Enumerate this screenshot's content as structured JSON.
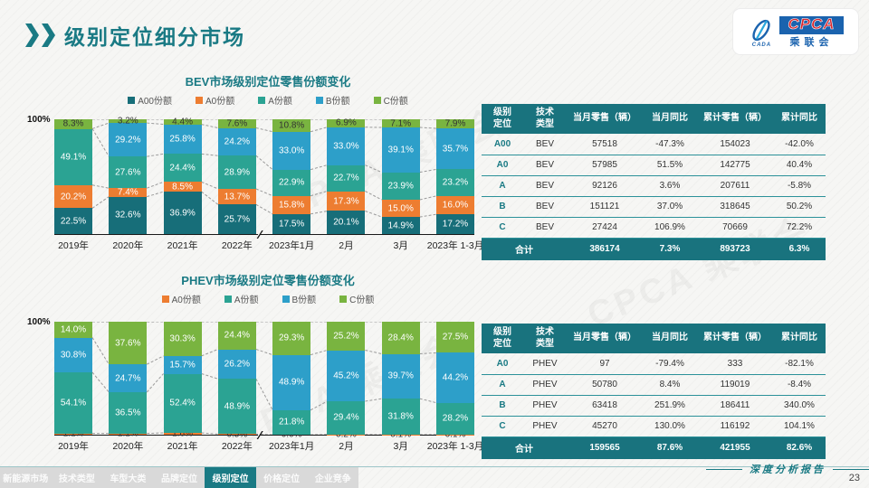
{
  "header": {
    "title": "级别定位细分市场",
    "logo": {
      "brand": "CPCA",
      "subtitle": "乘联会",
      "icon_label": "CADA"
    }
  },
  "watermark": {
    "text": "CPCA 乘联会"
  },
  "chart_data": [
    {
      "type": "stacked-bar",
      "title": "BEV市场级别定位零售份额变化",
      "unit": "%",
      "ymax_label": "100%",
      "ylim": [
        0,
        100
      ],
      "legend_position": "top",
      "break_after_index": 3,
      "break_mark": "∕∕",
      "categories": [
        "2019年",
        "2020年",
        "2021年",
        "2022年",
        "2023年1月",
        "2月",
        "3月",
        "2023年 1-3月"
      ],
      "series": [
        {
          "name": "A00份额",
          "color": "#176e79",
          "label_color": "#ffffff",
          "skip_zero_label": true,
          "values": [
            22.5,
            32.6,
            36.9,
            25.7,
            17.5,
            20.1,
            14.9,
            17.2
          ]
        },
        {
          "name": "A0份额",
          "color": "#ed7d31",
          "label_color": "#ffffff",
          "skip_zero_label": true,
          "values": [
            20.2,
            7.4,
            8.5,
            13.7,
            15.8,
            17.3,
            15.0,
            16.0
          ]
        },
        {
          "name": "A份额",
          "color": "#2ba393",
          "label_color": "#ffffff",
          "skip_zero_label": true,
          "values": [
            49.1,
            27.6,
            24.4,
            28.9,
            22.9,
            22.7,
            23.9,
            23.2
          ]
        },
        {
          "name": "B份额",
          "color": "#2d9fc9",
          "label_color": "#ffffff",
          "skip_zero_label": true,
          "values": [
            0,
            29.2,
            25.8,
            24.2,
            33.0,
            33.0,
            39.1,
            35.7
          ]
        },
        {
          "name": "C份额",
          "color": "#79b440",
          "label_color": "#333333",
          "skip_zero_label": true,
          "values": [
            8.3,
            3.2,
            4.4,
            7.6,
            10.8,
            6.9,
            7.1,
            7.9
          ]
        }
      ]
    },
    {
      "type": "stacked-bar",
      "title": "PHEV市场级别定位零售份额变化",
      "unit": "%",
      "ymax_label": "100%",
      "ylim": [
        0,
        100
      ],
      "legend_position": "top",
      "break_after_index": 3,
      "break_mark": "∕∕",
      "categories": [
        "2019年",
        "2020年",
        "2021年",
        "2022年",
        "2023年1月",
        "2月",
        "3月",
        "2023年 1-3月"
      ],
      "series": [
        {
          "name": "A0份额",
          "color": "#ed7d31",
          "label_color": "#333333",
          "skip_zero_label": false,
          "values": [
            1.1,
            1.1,
            1.6,
            0.5,
            0.0,
            0.2,
            0.1,
            0.1
          ]
        },
        {
          "name": "A份额",
          "color": "#2ba393",
          "label_color": "#ffffff",
          "skip_zero_label": true,
          "values": [
            54.1,
            36.5,
            52.4,
            48.9,
            21.8,
            29.4,
            31.8,
            28.2
          ]
        },
        {
          "name": "B份额",
          "color": "#2d9fc9",
          "label_color": "#ffffff",
          "skip_zero_label": true,
          "values": [
            30.8,
            24.7,
            15.7,
            26.2,
            48.9,
            45.2,
            39.7,
            44.2
          ]
        },
        {
          "name": "C份额",
          "color": "#79b440",
          "label_color": "#ffffff",
          "skip_zero_label": true,
          "values": [
            14.0,
            37.6,
            30.3,
            24.4,
            29.3,
            25.2,
            28.4,
            27.5
          ]
        }
      ]
    }
  ],
  "tables": [
    {
      "name": "BEV",
      "headers": [
        "级别\n定位",
        "技术\n类型",
        "当月零售（辆）",
        "当月同比",
        "累计零售（辆）",
        "累计同比"
      ],
      "rows": [
        [
          "A00",
          "BEV",
          "57518",
          "-47.3%",
          "154023",
          "-42.0%"
        ],
        [
          "A0",
          "BEV",
          "57985",
          "51.5%",
          "142775",
          "40.4%"
        ],
        [
          "A",
          "BEV",
          "92126",
          "3.6%",
          "207611",
          "-5.8%"
        ],
        [
          "B",
          "BEV",
          "151121",
          "37.0%",
          "318645",
          "50.2%"
        ],
        [
          "C",
          "BEV",
          "27424",
          "106.9%",
          "70669",
          "72.2%"
        ]
      ],
      "total": [
        "合计",
        "386174",
        "7.3%",
        "893723",
        "6.3%"
      ]
    },
    {
      "name": "PHEV",
      "headers": [
        "级别\n定位",
        "技术\n类型",
        "当月零售（辆）",
        "当月同比",
        "累计零售（辆）",
        "累计同比"
      ],
      "rows": [
        [
          "A0",
          "PHEV",
          "97",
          "-79.4%",
          "333",
          "-82.1%"
        ],
        [
          "A",
          "PHEV",
          "50780",
          "8.4%",
          "119019",
          "-8.4%"
        ],
        [
          "B",
          "PHEV",
          "63418",
          "251.9%",
          "186411",
          "340.0%"
        ],
        [
          "C",
          "PHEV",
          "45270",
          "130.0%",
          "116192",
          "104.1%"
        ]
      ],
      "total": [
        "合计",
        "159565",
        "87.6%",
        "421955",
        "82.6%"
      ]
    }
  ],
  "footer": {
    "tabs": [
      {
        "label": "新能源市场",
        "active": false
      },
      {
        "label": "技术类型",
        "active": false
      },
      {
        "label": "车型大类",
        "active": false
      },
      {
        "label": "品牌定位",
        "active": false
      },
      {
        "label": "级别定位",
        "active": true
      },
      {
        "label": "价格定位",
        "active": false
      },
      {
        "label": "企业竞争",
        "active": false
      }
    ],
    "report_label": "深度分析报告",
    "page_number": "23"
  }
}
